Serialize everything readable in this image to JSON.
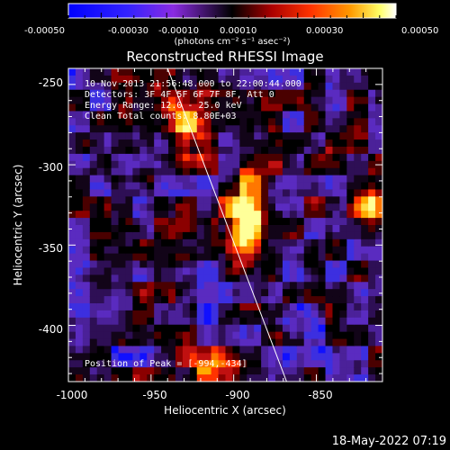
{
  "colorbar": {
    "tick_labels": [
      "-0.00050",
      "-0.00030",
      "-0.00010",
      "0.00010",
      "0.00030",
      "0.00050"
    ],
    "unit_label": "(photons cm⁻² s⁻¹ asec⁻²)",
    "range": [
      -0.0005,
      0.0005
    ]
  },
  "image": {
    "title": "Reconstructed RHESSI Image",
    "info_lines": [
      "10-Nov-2013 21:56:48.000 to 22:00:44.000",
      "Detectors: 3F 4F 5F 6F 7F 8F, Att 0",
      "Energy Range: 12.0 - 25.0 keV",
      "Clean     Total counts: 8.80E+03"
    ],
    "peak_label": "Position of Peak = [-994,-434]",
    "xlabel": "Heliocentric X (arcsec)",
    "ylabel": "Heliocentric Y (arcsec)",
    "xticks": [
      "-1000",
      "-950",
      "-900",
      "-850"
    ],
    "yticks": [
      "-250",
      "-300",
      "-350",
      "-400"
    ],
    "xlim": [
      -1000,
      -810
    ],
    "ylim": [
      -435,
      -240
    ],
    "limb_line": {
      "from": [
        -940,
        -240
      ],
      "to": [
        -868,
        -435
      ]
    }
  },
  "footer": {
    "timestamp": "18-May-2022 07:19"
  },
  "colors": {
    "background": "#000000",
    "colormap": [
      "#0000ff",
      "#6a5acd",
      "#8a2be2",
      "#000000",
      "#8b0000",
      "#ff3300",
      "#ff9900",
      "#ffff88",
      "#ffffff"
    ]
  }
}
